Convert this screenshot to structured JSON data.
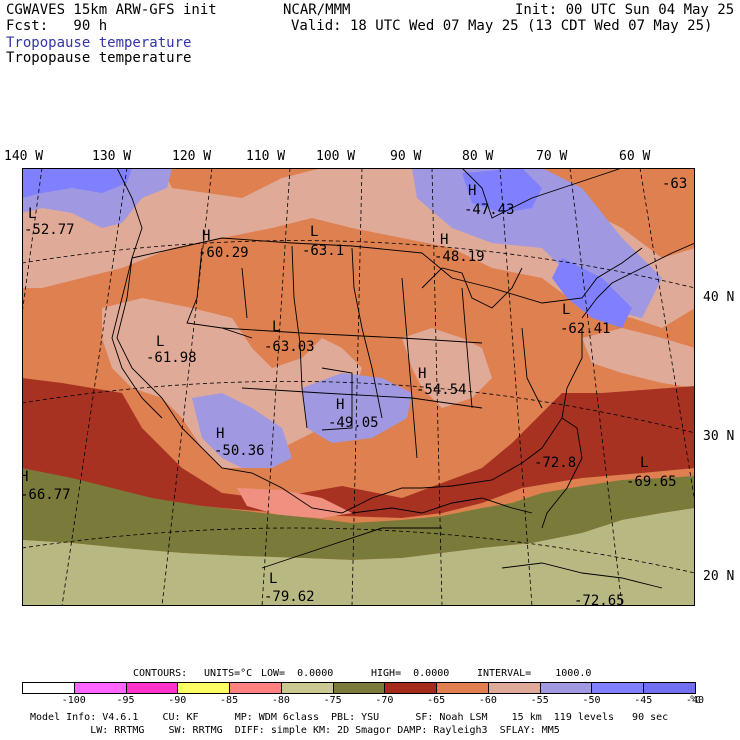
{
  "header": {
    "model_line": "CGWAVES 15km ARW-GFS init",
    "fcst_line": "Fcst:   90 h",
    "org": "NCAR/MMM",
    "init": "Init: 00 UTC Sun 04 May 25",
    "valid": "Valid: 18 UTC Wed 07 May 25 (13 CDT Wed 07 May 25)",
    "field_title_blue": "Tropopause temperature",
    "field_title_black": "Tropopause temperature"
  },
  "longitude_labels": [
    "140 W",
    "130 W",
    "120 W",
    "110 W",
    "100 W",
    "90 W",
    "80 W",
    "70 W",
    "60 W"
  ],
  "latitude_labels": [
    "40 N",
    "30 N",
    "20 N"
  ],
  "map_labels": [
    {
      "letter": "L",
      "value": "-52.77"
    },
    {
      "letter": "H",
      "value": "-60.29"
    },
    {
      "letter": "L",
      "value": "-63.1"
    },
    {
      "letter": "H",
      "value": "-47.43"
    },
    {
      "letter": "H",
      "value": "-48.19"
    },
    {
      "letter": "",
      "value": "-63"
    },
    {
      "letter": "L",
      "value": "-61.98"
    },
    {
      "letter": "L",
      "value": "-63.03"
    },
    {
      "letter": "L",
      "value": "-62.41"
    },
    {
      "letter": "H",
      "value": "-54.54"
    },
    {
      "letter": "H",
      "value": "-49.05"
    },
    {
      "letter": "H",
      "value": "-50.36"
    },
    {
      "letter": "H",
      "value": "-66.77"
    },
    {
      "letter": "",
      "value": "-72.8"
    },
    {
      "letter": "L",
      "value": "-69.65"
    },
    {
      "letter": "L",
      "value": "-79.62"
    },
    {
      "letter": "",
      "value": "-72.65"
    }
  ],
  "contours_line": {
    "label": "CONTOURS:",
    "units": "UNITS=°C",
    "low": "LOW=  0.0000",
    "high": "HIGH=  0.0000",
    "interval": "INTERVAL=    1000.0"
  },
  "colorbar": {
    "colors": [
      "#ffffff",
      "#ff66ff",
      "#ff33cc",
      "#ffff66",
      "#ff8080",
      "#c8c890",
      "#7a7a3a",
      "#a52a1a",
      "#e08050",
      "#e0aa98",
      "#a098e0",
      "#8080ff",
      "#7070f0"
    ],
    "ticks": [
      "-100",
      "-95",
      "-90",
      "-85",
      "-80",
      "-75",
      "-70",
      "-65",
      "-60",
      "-55",
      "-50",
      "-45",
      "-40"
    ],
    "unit": "°C"
  },
  "map_colors": {
    "deep_red": "#a83222",
    "orange": "#de8050",
    "tan": "#e0aa98",
    "lavender": "#a098e0",
    "blue": "#8080ff",
    "olive": "#7a7a3a",
    "khaki": "#b8b883",
    "salmon": "#f09080",
    "land": "#e0a48e"
  },
  "footer": {
    "line1": "Model Info: V4.6.1    CU: KF      MP: WDM 6class  PBL: YSU      SF: Noah LSM    15 km  119 levels   90 sec",
    "line2": "          LW: RRTMG    SW: RRTMG  DIFF: simple KM: 2D Smagor DAMP: Rayleigh3  SFLAY: MM5"
  }
}
